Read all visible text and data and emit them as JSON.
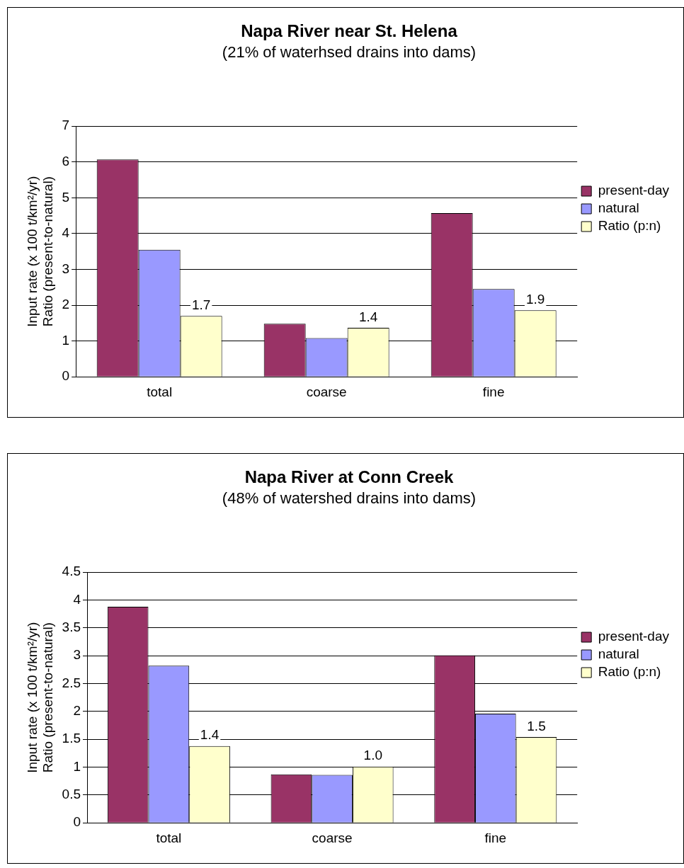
{
  "chart_data": [
    {
      "type": "bar",
      "title": "Napa River near St. Helena",
      "subtitle": "(21% of waterhsed drains into dams)",
      "ylabel": "Input rate (x 100 t/km²/yr)\nRatio (present-to-natural)",
      "categories": [
        "total",
        "coarse",
        "fine"
      ],
      "ylim": [
        0,
        7
      ],
      "yticks": [
        0,
        1,
        2,
        3,
        4,
        5,
        6,
        7
      ],
      "grid": "y",
      "legend": "right",
      "series": [
        {
          "name": "present-day",
          "color": "#993366",
          "values": [
            6.07,
            1.48,
            4.57
          ]
        },
        {
          "name": "natural",
          "color": "#9999ff",
          "values": [
            3.55,
            1.08,
            2.45
          ]
        },
        {
          "name": "Ratio (p:n)",
          "color": "#ffffcc",
          "values": [
            1.7,
            1.37,
            1.86
          ],
          "value_labels": [
            "1.7",
            "1.4",
            "1.9"
          ]
        }
      ]
    },
    {
      "type": "bar",
      "title": "Napa River at Conn Creek",
      "subtitle": "(48% of watershed drains into dams)",
      "ylabel": "Input rate (x 100 t/km²/yr)\nRatio (present-to-natural)",
      "categories": [
        "total",
        "coarse",
        "fine"
      ],
      "ylim": [
        0,
        4.5
      ],
      "yticks": [
        0,
        0.5,
        1,
        1.5,
        2,
        2.5,
        3,
        3.5,
        4,
        4.5
      ],
      "grid": "y",
      "legend": "right",
      "series": [
        {
          "name": "present-day",
          "color": "#993366",
          "values": [
            3.88,
            0.87,
            3.01
          ]
        },
        {
          "name": "natural",
          "color": "#9999ff",
          "values": [
            2.82,
            0.86,
            1.96
          ]
        },
        {
          "name": "Ratio (p:n)",
          "color": "#ffffcc",
          "values": [
            1.38,
            1.01,
            1.54
          ],
          "value_labels": [
            "1.4",
            "1.0",
            "1.5"
          ]
        }
      ]
    }
  ]
}
